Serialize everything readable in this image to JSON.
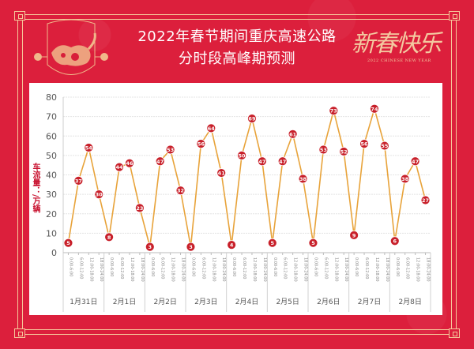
{
  "header": {
    "title_line1": "2022年春节期间重庆高速公路",
    "title_line2": "分时段高峰期预测",
    "decoration_right_text": "新春快乐",
    "decoration_right_subtext": "2022 CHINESE NEW YEAR"
  },
  "colors": {
    "background": "#dc1f3c",
    "frame": "#f6c79a",
    "line": "#e8a33a",
    "marker": "#c8202a",
    "marker_text": "#ffffff",
    "grid": "#e4e4e4",
    "axis_text": "#555555",
    "ylabel": "#c8102e"
  },
  "chart_data": {
    "type": "line",
    "title": "2022年春节期间重庆高速公路分时段高峰期预测",
    "xlabel": "",
    "ylabel": "车流量：/万辆",
    "ylim": [
      0,
      80
    ],
    "yticks": [
      0,
      10,
      20,
      30,
      40,
      50,
      60,
      70,
      80
    ],
    "grid": true,
    "legend": null,
    "day_groups": [
      "1月31日",
      "2月1日",
      "2月2日",
      "2月3日",
      "2月4日",
      "2月5日",
      "2月6日",
      "2月7日",
      "2月8日"
    ],
    "time_slots": [
      "0:00-6:00",
      "6:00-12:00",
      "12:00-18:00",
      "18:00-24:00"
    ],
    "categories": [
      "1月31日 0:00-6:00",
      "1月31日 6:00-12:00",
      "1月31日 12:00-18:00",
      "1月31日 18:00-24:00",
      "2月1日 0:00-6:00",
      "2月1日 6:00-12:00",
      "2月1日 12:00-18:00",
      "2月1日 18:00-24:00",
      "2月2日 0:00-6:00",
      "2月2日 6:00-12:00",
      "2月2日 12:00-18:00",
      "2月2日 18:00-24:00",
      "2月3日 0:00-6:00",
      "2月3日 6:00-12:00",
      "2月3日 12:00-18:00",
      "2月3日 18:00-24:00",
      "2月4日 0:00-6:00",
      "2月4日 6:00-12:00",
      "2月4日 12:00-18:00",
      "2月4日 18:00-24:00",
      "2月5日 0:00-6:00",
      "2月5日 6:00-12:00",
      "2月5日 12:00-18:00",
      "2月5日 18:00-24:00",
      "2月6日 0:00-6:00",
      "2月6日 6:00-12:00",
      "2月6日 12:00-18:00",
      "2月6日 18:00-24:00",
      "2月7日 0:00-6:00",
      "2月7日 6:00-12:00",
      "2月7日 12:00-18:00",
      "2月7日 18:00-24:00",
      "2月8日 0:00-6:00",
      "2月8日 6:00-12:00",
      "2月8日 12:00-18:00",
      "2月8日 18:00-24:00"
    ],
    "series": [
      {
        "name": "车流量",
        "values": [
          5,
          37,
          54,
          30,
          8,
          44,
          46,
          23,
          3,
          47,
          53,
          32,
          3,
          56,
          64,
          41,
          4,
          50,
          69,
          47,
          5,
          47,
          61,
          38,
          5,
          53,
          73,
          52,
          9,
          56,
          74,
          55,
          6,
          38,
          47,
          27
        ]
      }
    ],
    "data_labels": true
  }
}
